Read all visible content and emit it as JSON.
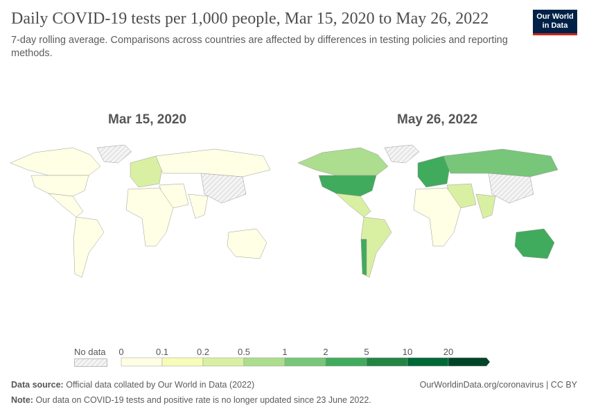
{
  "header": {
    "title": "Daily COVID-19 tests per 1,000 people, Mar 15, 2020 to May 26, 2022",
    "subtitle": "7-day rolling average. Comparisons across countries are affected by differences in testing policies and reporting methods.",
    "logo": "Our World in Data"
  },
  "chart_data": {
    "type": "choropleth-map",
    "maps": [
      {
        "title": "Mar 15, 2020",
        "regions": {
          "north_america": "0-0.1",
          "usa": "0-0.1",
          "latin_america": "0-0.1",
          "south_america": "0-0.1",
          "europe": "0.1-0.5",
          "russia": "0-0.1",
          "china": "no data",
          "africa": "0-0.1",
          "middle_east": "0-0.1",
          "india": "0-0.1",
          "australia": "0-0.1",
          "greenland": "no data"
        }
      },
      {
        "title": "May 26, 2022",
        "regions": {
          "north_america": "0.5-1",
          "usa": "2-5",
          "latin_america": "0.1-0.5",
          "south_america": "0.2-0.5",
          "chile": "2-5",
          "europe": "2-5",
          "russia": "1-2",
          "china": "no data",
          "africa": "0-0.1",
          "middle_east": "0.2-0.5",
          "india": "0.2-0.5",
          "australia": "2-5",
          "greenland": "no data"
        }
      }
    ],
    "legend": {
      "no_data_label": "No data",
      "ticks": [
        "0",
        "0.1",
        "0.2",
        "0.5",
        "1",
        "2",
        "5",
        "10",
        "20"
      ],
      "colors": [
        "#ffffe5",
        "#f7fcb9",
        "#d9f0a3",
        "#addd8e",
        "#78c679",
        "#41ab5d",
        "#238443",
        "#006837",
        "#004529"
      ]
    }
  },
  "footer": {
    "source_label": "Data source:",
    "source_text": "Official data collated by Our World in Data (2022)",
    "link": "OurWorldinData.org/coronavirus | CC BY",
    "note_label": "Note:",
    "note_text": "Our data on COVID-19 tests and positive rate is no longer updated since 23 June 2022."
  }
}
